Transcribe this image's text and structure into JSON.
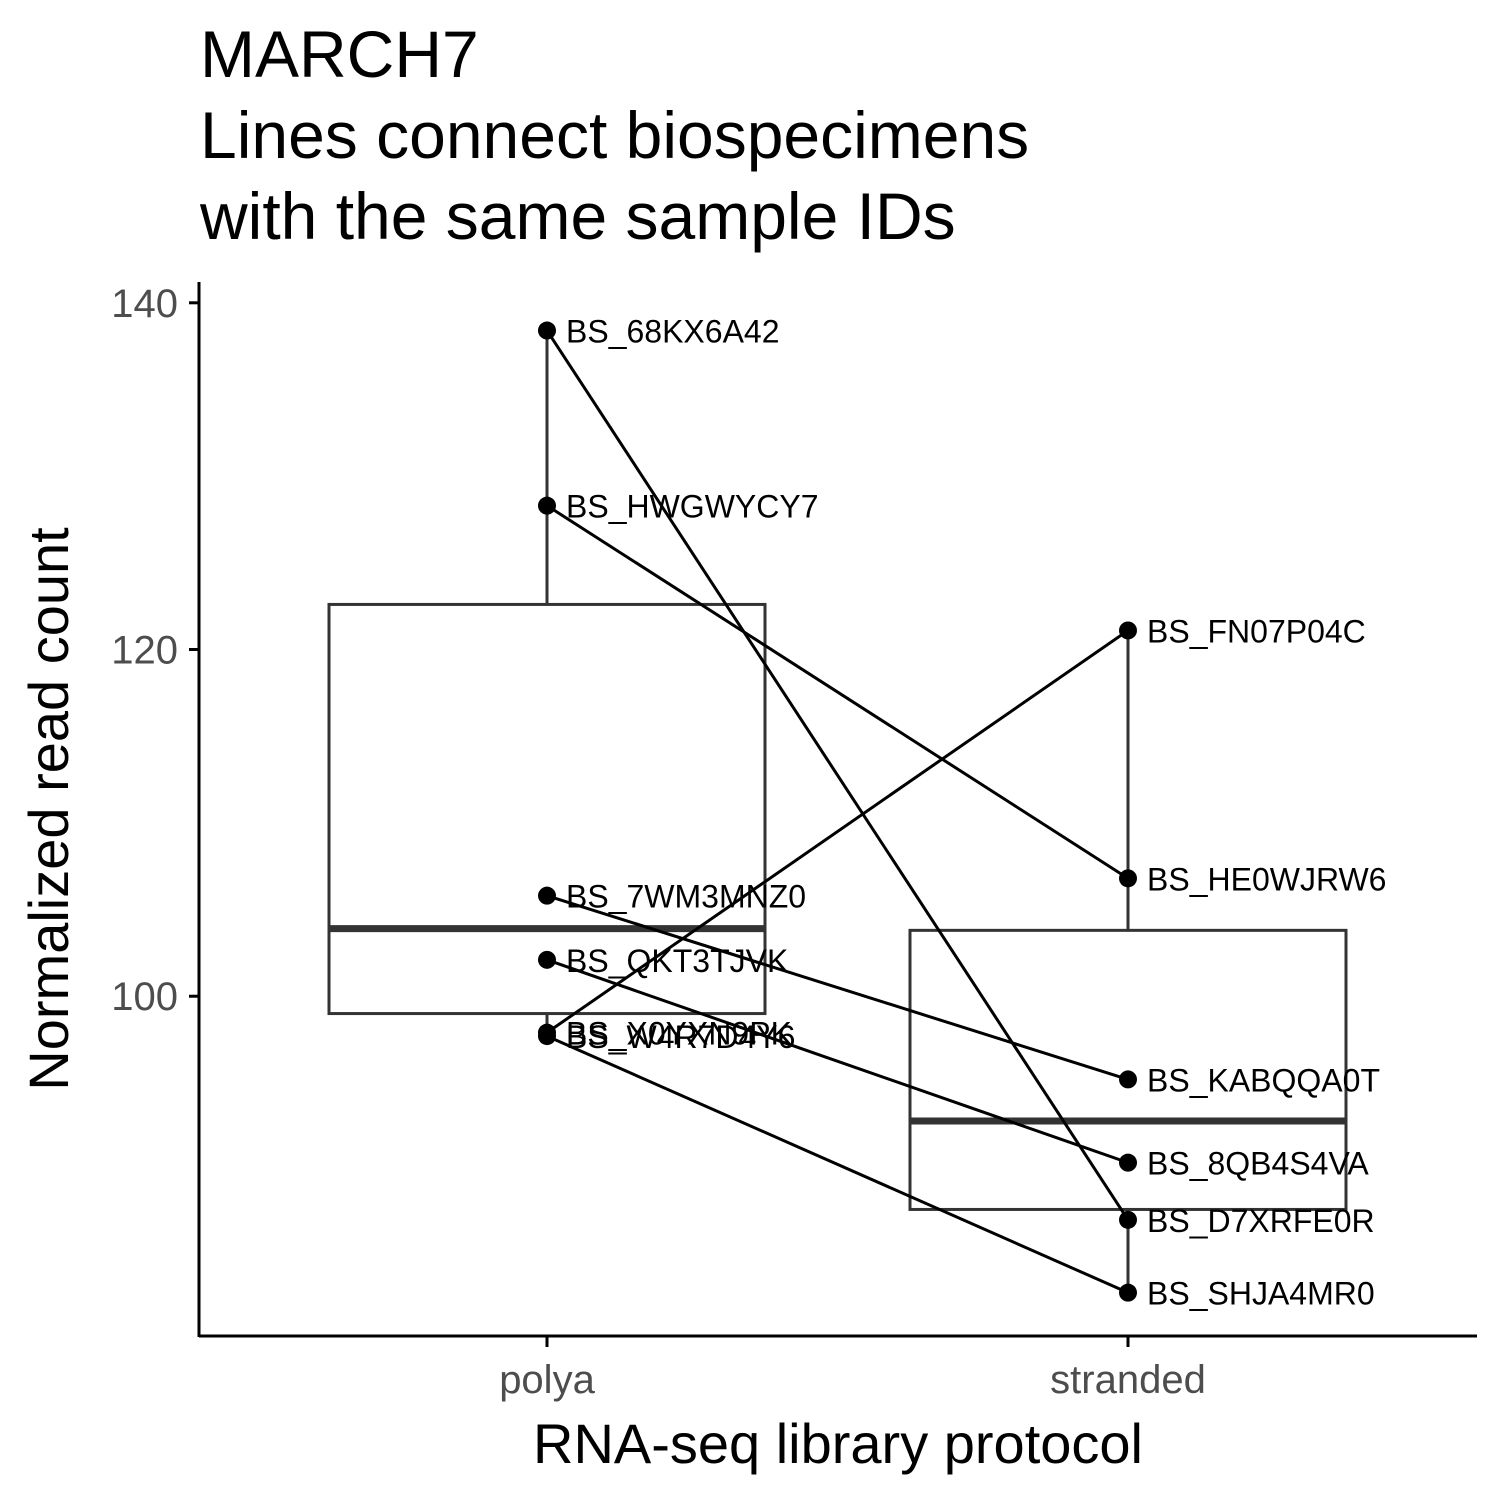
{
  "chart_data": {
    "type": "box",
    "title": [
      "MARCH7",
      "Lines connect biospecimens",
      "with the same sample IDs"
    ],
    "xlabel": "RNA-seq library protocol",
    "ylabel": "Normalized read count",
    "categories": [
      "polya",
      "stranded"
    ],
    "ylim": [
      80.4,
      141.2
    ],
    "yticks": [
      100,
      120,
      140
    ],
    "grid": false,
    "boxes": [
      {
        "category": "polya",
        "min": 97.7,
        "q1": 99.0,
        "median": 103.9,
        "q3": 122.6,
        "max": 138.4
      },
      {
        "category": "stranded",
        "min": 82.9,
        "q1": 87.7,
        "median": 92.8,
        "q3": 103.8,
        "max": 121.1
      }
    ],
    "points": [
      {
        "category": "polya",
        "label": "BS_68KX6A42",
        "value": 138.4
      },
      {
        "category": "polya",
        "label": "BS_HWGWYCY7",
        "value": 128.3
      },
      {
        "category": "polya",
        "label": "BS_7WM3MNZ0",
        "value": 105.8
      },
      {
        "category": "polya",
        "label": "BS_QKT3TJVK",
        "value": 102.1
      },
      {
        "category": "polya",
        "label": "BS_X0YXN9PK",
        "value": 97.9
      },
      {
        "category": "polya",
        "label": "BS_W4R7D4Y6",
        "value": 97.7
      },
      {
        "category": "stranded",
        "label": "BS_FN07P04C",
        "value": 121.1
      },
      {
        "category": "stranded",
        "label": "BS_HE0WJRW6",
        "value": 106.8
      },
      {
        "category": "stranded",
        "label": "BS_KABQQA0T",
        "value": 95.2
      },
      {
        "category": "stranded",
        "label": "BS_8QB4S4VA",
        "value": 90.4
      },
      {
        "category": "stranded",
        "label": "BS_D7XRFE0R",
        "value": 87.1
      },
      {
        "category": "stranded",
        "label": "BS_SHJA4MR0",
        "value": 82.9
      }
    ],
    "pairs": [
      [
        138.4,
        87.1
      ],
      [
        128.3,
        106.8
      ],
      [
        105.8,
        95.2
      ],
      [
        102.1,
        90.4
      ],
      [
        97.9,
        121.1
      ],
      [
        97.7,
        82.9
      ]
    ]
  }
}
